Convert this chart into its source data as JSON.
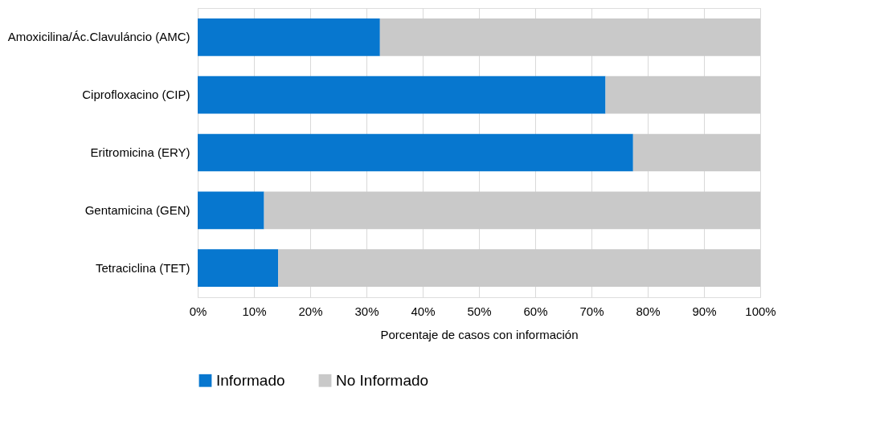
{
  "chart_data": {
    "type": "bar",
    "orientation": "horizontal",
    "stacked": true,
    "xlabel": "Porcentaje de casos con información",
    "categories": [
      "Amoxicilina/Ác.Clavuláncio  (AMC)",
      "Ciprofloxacino (CIP)",
      "Eritromicina (ERY)",
      "Gentamicina (GEN)",
      "Tetraciclina (TET)"
    ],
    "series": [
      {
        "name": "Informado",
        "color": "#0777cf",
        "values": [
          32.4,
          72.5,
          77.4,
          11.8,
          14.3
        ]
      },
      {
        "name": "No Informado",
        "color": "#c9c9c9",
        "values": [
          67.6,
          27.5,
          22.6,
          88.2,
          85.7
        ]
      }
    ],
    "xlim": [
      0,
      100
    ],
    "xticks": [
      {
        "value": 0,
        "label": "0%"
      },
      {
        "value": 10,
        "label": "10%"
      },
      {
        "value": 20,
        "label": "20%"
      },
      {
        "value": 30,
        "label": "30%"
      },
      {
        "value": 40,
        "label": "40%"
      },
      {
        "value": 50,
        "label": "50%"
      },
      {
        "value": 60,
        "label": "60%"
      },
      {
        "value": 70,
        "label": "70%"
      },
      {
        "value": 80,
        "label": "80%"
      },
      {
        "value": 90,
        "label": "90%"
      },
      {
        "value": 100,
        "label": "100%"
      }
    ],
    "grid": "x",
    "legend": "bottom"
  }
}
